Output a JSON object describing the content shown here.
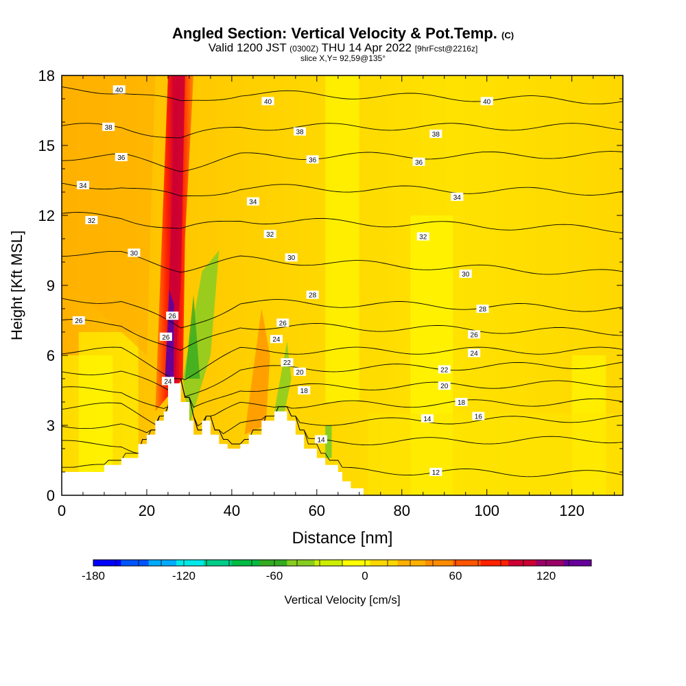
{
  "header": {
    "title": "Angled Section: Vertical Velocity & Pot.Temp.",
    "title_unit": "(C)",
    "valid_prefix": "Valid 1200 JST",
    "valid_utc": "(0300Z)",
    "valid_date": "THU 14 Apr 2022",
    "forecast": "[9hrFcst@2216z]",
    "slice": "slice X,Y= 92,59@135°"
  },
  "chart_data": {
    "type": "heatmap",
    "xlabel": "Distance [nm]",
    "ylabel": "Height [Kft MSL]",
    "xlim": [
      0,
      132
    ],
    "ylim": [
      0,
      18
    ],
    "x_ticks": [
      0,
      20,
      40,
      60,
      80,
      100,
      120
    ],
    "y_ticks": [
      0,
      3,
      6,
      9,
      12,
      15,
      18
    ],
    "colorbar": {
      "label": "Vertical Velocity [cm/s]",
      "min": -180,
      "max": 150,
      "step": 15,
      "tick_values": [
        -180,
        -120,
        -60,
        0,
        60,
        120
      ],
      "tick_labels": [
        "-180",
        "-120",
        "-60",
        "0",
        "60",
        "120"
      ],
      "colors": [
        "#0000ff",
        "#0055ff",
        "#00aaff",
        "#00e8e8",
        "#00cc88",
        "#00bb44",
        "#33aa22",
        "#88cc22",
        "#ccee00",
        "#ffff00",
        "#ffd700",
        "#ffb000",
        "#ff8c00",
        "#ff5500",
        "#ff2200",
        "#cc0033",
        "#990066",
        "#660099"
      ]
    },
    "terrain_profile": [
      [
        0,
        1
      ],
      [
        10,
        1
      ],
      [
        10,
        1.3
      ],
      [
        14,
        1.3
      ],
      [
        14,
        1.6
      ],
      [
        18,
        1.6
      ],
      [
        18,
        2.2
      ],
      [
        20,
        2.2
      ],
      [
        20,
        2.6
      ],
      [
        22,
        2.6
      ],
      [
        22,
        3.2
      ],
      [
        24,
        3.2
      ],
      [
        24,
        3.6
      ],
      [
        25,
        3.6
      ],
      [
        25,
        4.8
      ],
      [
        28,
        4.8
      ],
      [
        28,
        4
      ],
      [
        30,
        4
      ],
      [
        30,
        3.2
      ],
      [
        31,
        3.2
      ],
      [
        31,
        2.6
      ],
      [
        33,
        2.6
      ],
      [
        33,
        3.2
      ],
      [
        35,
        3.2
      ],
      [
        35,
        2.6
      ],
      [
        37,
        2.6
      ],
      [
        37,
        2.2
      ],
      [
        39,
        2.2
      ],
      [
        39,
        2
      ],
      [
        42,
        2
      ],
      [
        42,
        2.2
      ],
      [
        44,
        2.2
      ],
      [
        44,
        2.6
      ],
      [
        47,
        2.6
      ],
      [
        47,
        3.2
      ],
      [
        50,
        3.2
      ],
      [
        50,
        3.6
      ],
      [
        53,
        3.6
      ],
      [
        53,
        3.2
      ],
      [
        55,
        3.2
      ],
      [
        55,
        2.6
      ],
      [
        57,
        2.6
      ],
      [
        57,
        2
      ],
      [
        60,
        2
      ],
      [
        60,
        1.6
      ],
      [
        62,
        1.6
      ],
      [
        62,
        1.3
      ],
      [
        65,
        1.3
      ],
      [
        65,
        1
      ],
      [
        66,
        1
      ],
      [
        66,
        0.6
      ],
      [
        68,
        0.6
      ],
      [
        68,
        0.3
      ],
      [
        71,
        0.3
      ],
      [
        71,
        0
      ],
      [
        132,
        0
      ]
    ],
    "updraft_core": {
      "x": 27.5,
      "value_max": 150,
      "min_height": 5
    },
    "isentropes": [
      {
        "theta": 12,
        "h0": 1.2,
        "h_east": 0.9
      },
      {
        "theta": 14,
        "h0": 2.2,
        "h_east": 2.4
      },
      {
        "theta": 16,
        "h0": 3.0,
        "h_east": 3.3
      },
      {
        "theta": 18,
        "h0": 3.8,
        "h_east": 4.0
      },
      {
        "theta": 20,
        "h0": 4.5,
        "h_east": 4.8
      },
      {
        "theta": 22,
        "h0": 5.3,
        "h_east": 5.6
      },
      {
        "theta": 24,
        "h0": 6.2,
        "h_east": 6.2
      },
      {
        "theta": 26,
        "h0": 7.4,
        "h_east": 7.0
      },
      {
        "theta": 28,
        "h0": 8.4,
        "h_east": 8.0
      },
      {
        "theta": 30,
        "h0": 10.4,
        "h_east": 9.5
      },
      {
        "theta": 32,
        "h0": 12.0,
        "h_east": 11.4
      },
      {
        "theta": 34,
        "h0": 13.3,
        "h_east": 13.0
      },
      {
        "theta": 36,
        "h0": 14.5,
        "h_east": 14.6
      },
      {
        "theta": 38,
        "h0": 15.8,
        "h_east": 15.8
      },
      {
        "theta": 40,
        "h0": 17.4,
        "h_east": 16.9
      }
    ],
    "contour_labels": [
      {
        "text": "40",
        "x": 13.5,
        "y": 17.4
      },
      {
        "text": "40",
        "x": 48.5,
        "y": 16.9
      },
      {
        "text": "40",
        "x": 100,
        "y": 16.9
      },
      {
        "text": "38",
        "x": 11,
        "y": 15.8
      },
      {
        "text": "38",
        "x": 56,
        "y": 15.6
      },
      {
        "text": "38",
        "x": 88,
        "y": 15.5
      },
      {
        "text": "36",
        "x": 14,
        "y": 14.5
      },
      {
        "text": "36",
        "x": 59,
        "y": 14.4
      },
      {
        "text": "36",
        "x": 84,
        "y": 14.3
      },
      {
        "text": "34",
        "x": 5,
        "y": 13.3
      },
      {
        "text": "34",
        "x": 45,
        "y": 12.6
      },
      {
        "text": "34",
        "x": 93,
        "y": 12.8
      },
      {
        "text": "32",
        "x": 7,
        "y": 11.8
      },
      {
        "text": "32",
        "x": 49,
        "y": 11.2
      },
      {
        "text": "32",
        "x": 85,
        "y": 11.1
      },
      {
        "text": "30",
        "x": 17,
        "y": 10.4
      },
      {
        "text": "30",
        "x": 54,
        "y": 10.2
      },
      {
        "text": "30",
        "x": 95,
        "y": 9.5
      },
      {
        "text": "28",
        "x": 59,
        "y": 8.6
      },
      {
        "text": "28",
        "x": 99,
        "y": 8.0
      },
      {
        "text": "26",
        "x": 4,
        "y": 7.5
      },
      {
        "text": "26",
        "x": 26,
        "y": 7.7
      },
      {
        "text": "26",
        "x": 52,
        "y": 7.4
      },
      {
        "text": "26",
        "x": 97,
        "y": 6.9
      },
      {
        "text": "26",
        "x": 24.5,
        "y": 6.8
      },
      {
        "text": "24",
        "x": 50.5,
        "y": 6.7
      },
      {
        "text": "24",
        "x": 97,
        "y": 6.1
      },
      {
        "text": "24",
        "x": 25,
        "y": 4.9
      },
      {
        "text": "22",
        "x": 53,
        "y": 5.7
      },
      {
        "text": "22",
        "x": 90,
        "y": 5.4
      },
      {
        "text": "20",
        "x": 56,
        "y": 5.3
      },
      {
        "text": "20",
        "x": 90,
        "y": 4.7
      },
      {
        "text": "18",
        "x": 57,
        "y": 4.5
      },
      {
        "text": "18",
        "x": 94,
        "y": 4.0
      },
      {
        "text": "16",
        "x": 98,
        "y": 3.4
      },
      {
        "text": "14",
        "x": 61,
        "y": 2.4
      },
      {
        "text": "14",
        "x": 86,
        "y": 3.3
      },
      {
        "text": "12",
        "x": 88,
        "y": 1.0
      }
    ]
  }
}
